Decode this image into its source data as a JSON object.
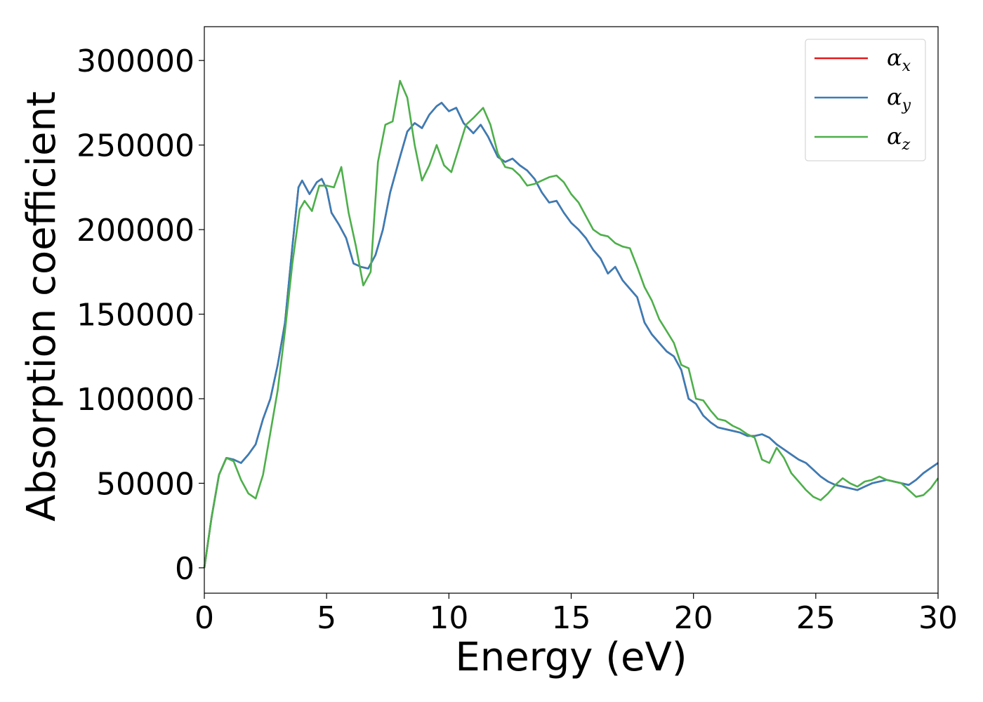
{
  "chart_data": {
    "type": "line",
    "xlabel": "Energy (eV)",
    "ylabel": "Absorption coefficient",
    "xlim": [
      0,
      30
    ],
    "ylim": [
      -15000,
      320000
    ],
    "xticks": [
      0,
      5,
      10,
      15,
      20,
      25,
      30
    ],
    "yticks": [
      0,
      50000,
      100000,
      150000,
      200000,
      250000,
      300000
    ],
    "xtick_labels": [
      "0",
      "5",
      "10",
      "15",
      "20",
      "25",
      "30"
    ],
    "ytick_labels": [
      "0",
      "50000",
      "100000",
      "150000",
      "200000",
      "250000",
      "300000"
    ],
    "grid": false,
    "legend_position": "top-right",
    "series": [
      {
        "name": "α_x",
        "legend_symbol": "α",
        "legend_subscript": "x",
        "color": "#e41a1c",
        "x": [
          0,
          0.3,
          0.6,
          0.9,
          1.2,
          1.5,
          1.8,
          2.1,
          2.4,
          2.7,
          3.0,
          3.3,
          3.6,
          3.85,
          4.0,
          4.3,
          4.6,
          4.8,
          5.0,
          5.2,
          5.5,
          5.8,
          6.1,
          6.4,
          6.7,
          7.0,
          7.3,
          7.6,
          8.0,
          8.3,
          8.6,
          8.9,
          9.2,
          9.5,
          9.7,
          10.0,
          10.3,
          10.6,
          11.0,
          11.3,
          11.6,
          12.0,
          12.3,
          12.6,
          12.9,
          13.2,
          13.5,
          13.8,
          14.1,
          14.4,
          14.7,
          15.0,
          15.3,
          15.6,
          15.9,
          16.2,
          16.5,
          16.8,
          17.1,
          17.4,
          17.7,
          18.0,
          18.3,
          18.6,
          18.9,
          19.2,
          19.5,
          19.8,
          20.1,
          20.4,
          20.7,
          21.0,
          21.3,
          21.6,
          21.9,
          22.2,
          22.5,
          22.8,
          23.1,
          23.4,
          23.7,
          24.0,
          24.3,
          24.6,
          24.9,
          25.2,
          25.5,
          25.8,
          26.1,
          26.4,
          26.7,
          27.0,
          27.3,
          27.6,
          27.9,
          28.2,
          28.5,
          28.8,
          29.1,
          29.4,
          29.7,
          30.0
        ],
        "values": [
          0,
          30000,
          55000,
          65000,
          64000,
          62000,
          67000,
          73000,
          88000,
          100000,
          120000,
          145000,
          190000,
          225000,
          229000,
          221000,
          228000,
          230000,
          224000,
          210000,
          203000,
          195000,
          180000,
          178000,
          177000,
          185000,
          200000,
          222000,
          243000,
          258000,
          263000,
          260000,
          268000,
          273000,
          275000,
          270000,
          272000,
          263000,
          257000,
          262000,
          255000,
          243000,
          240000,
          242000,
          238000,
          235000,
          230000,
          222000,
          216000,
          217000,
          210000,
          204000,
          200000,
          195000,
          188000,
          183000,
          174000,
          178000,
          170000,
          165000,
          160000,
          145000,
          138000,
          133000,
          128000,
          125000,
          117000,
          100000,
          97000,
          90000,
          86000,
          83000,
          82000,
          81000,
          80000,
          78000,
          78000,
          79000,
          77000,
          73000,
          70000,
          67000,
          64000,
          62000,
          58000,
          54000,
          51000,
          49000,
          48000,
          47000,
          46000,
          48000,
          50000,
          51000,
          52000,
          51000,
          50000,
          49000,
          52000,
          56000,
          59000,
          62000
        ]
      },
      {
        "name": "α_y",
        "legend_symbol": "α",
        "legend_subscript": "y",
        "color": "#377eb8",
        "x": [
          0,
          0.3,
          0.6,
          0.9,
          1.2,
          1.5,
          1.8,
          2.1,
          2.4,
          2.7,
          3.0,
          3.3,
          3.6,
          3.85,
          4.0,
          4.3,
          4.6,
          4.8,
          5.0,
          5.2,
          5.5,
          5.8,
          6.1,
          6.4,
          6.7,
          7.0,
          7.3,
          7.6,
          8.0,
          8.3,
          8.6,
          8.9,
          9.2,
          9.5,
          9.7,
          10.0,
          10.3,
          10.6,
          11.0,
          11.3,
          11.6,
          12.0,
          12.3,
          12.6,
          12.9,
          13.2,
          13.5,
          13.8,
          14.1,
          14.4,
          14.7,
          15.0,
          15.3,
          15.6,
          15.9,
          16.2,
          16.5,
          16.8,
          17.1,
          17.4,
          17.7,
          18.0,
          18.3,
          18.6,
          18.9,
          19.2,
          19.5,
          19.8,
          20.1,
          20.4,
          20.7,
          21.0,
          21.3,
          21.6,
          21.9,
          22.2,
          22.5,
          22.8,
          23.1,
          23.4,
          23.7,
          24.0,
          24.3,
          24.6,
          24.9,
          25.2,
          25.5,
          25.8,
          26.1,
          26.4,
          26.7,
          27.0,
          27.3,
          27.6,
          27.9,
          28.2,
          28.5,
          28.8,
          29.1,
          29.4,
          29.7,
          30.0
        ],
        "values": [
          0,
          30000,
          55000,
          65000,
          64000,
          62000,
          67000,
          73000,
          88000,
          100000,
          120000,
          145000,
          190000,
          225000,
          229000,
          221000,
          228000,
          230000,
          224000,
          210000,
          203000,
          195000,
          180000,
          178000,
          177000,
          185000,
          200000,
          222000,
          243000,
          258000,
          263000,
          260000,
          268000,
          273000,
          275000,
          270000,
          272000,
          263000,
          257000,
          262000,
          255000,
          243000,
          240000,
          242000,
          238000,
          235000,
          230000,
          222000,
          216000,
          217000,
          210000,
          204000,
          200000,
          195000,
          188000,
          183000,
          174000,
          178000,
          170000,
          165000,
          160000,
          145000,
          138000,
          133000,
          128000,
          125000,
          117000,
          100000,
          97000,
          90000,
          86000,
          83000,
          82000,
          81000,
          80000,
          78000,
          78000,
          79000,
          77000,
          73000,
          70000,
          67000,
          64000,
          62000,
          58000,
          54000,
          51000,
          49000,
          48000,
          47000,
          46000,
          48000,
          50000,
          51000,
          52000,
          51000,
          50000,
          49000,
          52000,
          56000,
          59000,
          62000
        ]
      },
      {
        "name": "α_z",
        "legend_symbol": "α",
        "legend_subscript": "z",
        "color": "#4daf4a",
        "x": [
          0,
          0.3,
          0.6,
          0.9,
          1.2,
          1.5,
          1.8,
          2.1,
          2.4,
          2.7,
          3.0,
          3.3,
          3.6,
          3.9,
          4.1,
          4.4,
          4.7,
          5.0,
          5.3,
          5.6,
          5.9,
          6.2,
          6.5,
          6.8,
          7.1,
          7.4,
          7.7,
          8.0,
          8.3,
          8.6,
          8.9,
          9.2,
          9.5,
          9.8,
          10.1,
          10.4,
          10.7,
          11.0,
          11.4,
          11.7,
          12.0,
          12.3,
          12.6,
          12.9,
          13.2,
          13.5,
          13.8,
          14.1,
          14.4,
          14.7,
          15.0,
          15.3,
          15.6,
          15.9,
          16.2,
          16.5,
          16.8,
          17.1,
          17.4,
          17.7,
          18.0,
          18.3,
          18.6,
          18.9,
          19.2,
          19.5,
          19.8,
          20.1,
          20.4,
          20.7,
          21.0,
          21.3,
          21.6,
          21.9,
          22.2,
          22.5,
          22.8,
          23.1,
          23.4,
          23.7,
          24.0,
          24.3,
          24.6,
          24.9,
          25.2,
          25.5,
          25.8,
          26.1,
          26.4,
          26.7,
          27.0,
          27.3,
          27.6,
          27.9,
          28.2,
          28.5,
          28.8,
          29.1,
          29.4,
          29.7,
          30.0
        ],
        "values": [
          0,
          30000,
          55000,
          65000,
          63000,
          52000,
          44000,
          41000,
          55000,
          80000,
          105000,
          140000,
          180000,
          212000,
          217000,
          211000,
          226000,
          226000,
          225000,
          237000,
          210000,
          190000,
          167000,
          175000,
          240000,
          262000,
          264000,
          288000,
          278000,
          250000,
          229000,
          238000,
          250000,
          238000,
          234000,
          248000,
          262000,
          266000,
          272000,
          262000,
          245000,
          237000,
          236000,
          232000,
          226000,
          227000,
          229000,
          231000,
          232000,
          228000,
          221000,
          216000,
          208000,
          200000,
          197000,
          196000,
          192000,
          190000,
          189000,
          178000,
          166000,
          158000,
          147000,
          140000,
          133000,
          120000,
          118000,
          100000,
          99000,
          93000,
          88000,
          87000,
          84000,
          82000,
          79000,
          77000,
          64000,
          62000,
          71000,
          65000,
          56000,
          51000,
          46000,
          42000,
          40000,
          44000,
          49000,
          53000,
          50000,
          48000,
          51000,
          52000,
          54000,
          52000,
          51000,
          50000,
          46000,
          42000,
          43000,
          47000,
          53000
        ]
      }
    ]
  }
}
